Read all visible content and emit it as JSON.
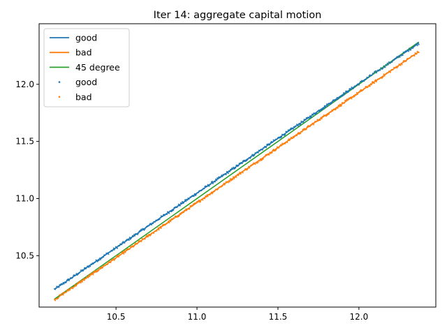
{
  "chart_data": {
    "type": "line",
    "title": "Iter 14: aggregate capital motion",
    "xlabel": "",
    "ylabel": "",
    "xlim": [
      10.025,
      12.475
    ],
    "ylim": [
      10.05,
      12.53
    ],
    "x_ticks": [
      10.5,
      11.0,
      11.5,
      12.0
    ],
    "x_tick_labels": [
      "10.5",
      "11.0",
      "11.5",
      "12.0"
    ],
    "y_ticks": [
      10.5,
      11.0,
      11.5,
      12.0
    ],
    "y_tick_labels": [
      "10.5",
      "11.0",
      "11.5",
      "12.0"
    ],
    "grid": false,
    "legend_position": "top-left",
    "series": [
      {
        "name": "good",
        "kind": "line",
        "color": "#1f77b4",
        "x": [
          10.12,
          12.37
        ],
        "y": [
          10.205,
          12.36
        ]
      },
      {
        "name": "bad",
        "kind": "line",
        "color": "#ff7f0e",
        "x": [
          10.12,
          12.37
        ],
        "y": [
          10.115,
          12.285
        ]
      },
      {
        "name": "45 degree",
        "kind": "line",
        "color": "#2ca02c",
        "x": [
          10.12,
          12.37
        ],
        "y": [
          10.12,
          12.37
        ]
      },
      {
        "name": "good",
        "kind": "scatter",
        "color": "#1f77b4",
        "x_range": [
          10.12,
          12.37
        ],
        "line": [
          10.205,
          12.36
        ],
        "spread": 0.012
      },
      {
        "name": "bad",
        "kind": "scatter",
        "color": "#ff7f0e",
        "x_range": [
          10.12,
          12.37
        ],
        "line": [
          10.115,
          12.285
        ],
        "spread": 0.012
      }
    ]
  }
}
